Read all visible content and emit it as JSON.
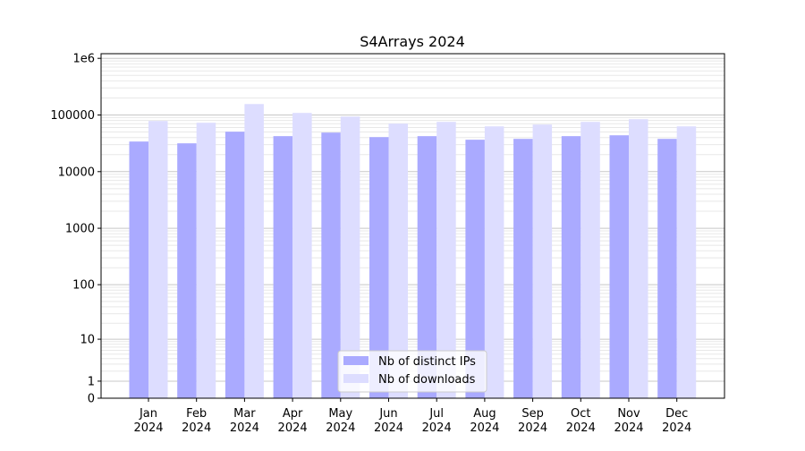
{
  "chart_data": {
    "type": "bar",
    "title": "S4Arrays 2024",
    "xlabel": "",
    "ylabel": "",
    "yscale": "log10(1+y)",
    "ylim": [
      0,
      1000000
    ],
    "y_ticks": [
      0,
      1,
      10,
      100,
      1000,
      10000,
      100000,
      1000000
    ],
    "y_tick_labels": [
      "0",
      "1",
      "10",
      "100",
      "1000",
      "10000",
      "100000",
      "1e6"
    ],
    "grid": true,
    "legend_placement": "bottom-center",
    "categories": [
      "Jan\n2024",
      "Feb\n2024",
      "Mar\n2024",
      "Apr\n2024",
      "May\n2024",
      "Jun\n2024",
      "Jul\n2024",
      "Aug\n2024",
      "Sep\n2024",
      "Oct\n2024",
      "Nov\n2024",
      "Dec\n2024"
    ],
    "series": [
      {
        "name": "Nb of distinct IPs",
        "color": "#aaaaff",
        "values": [
          34000,
          31600,
          50700,
          42300,
          48900,
          40700,
          42300,
          36600,
          37900,
          42300,
          43800,
          37900
        ]
      },
      {
        "name": "Nb of downloads",
        "color": "#ddddff",
        "values": [
          78300,
          73000,
          156000,
          108700,
          94000,
          70300,
          75500,
          63000,
          67800,
          75500,
          84300,
          63000
        ]
      }
    ]
  }
}
